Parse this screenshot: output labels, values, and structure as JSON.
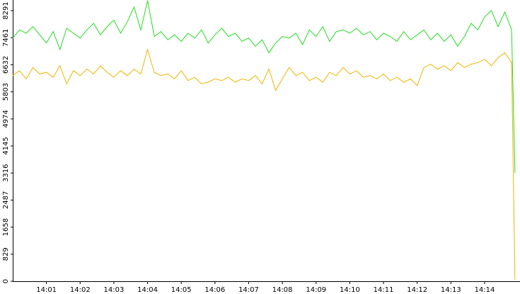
{
  "chart_data": {
    "type": "line",
    "x": [
      0,
      0.2,
      0.4,
      0.6,
      0.8,
      1,
      1.2,
      1.4,
      1.6,
      1.8,
      2,
      2.2,
      2.4,
      2.6,
      2.8,
      3,
      3.2,
      3.4,
      3.6,
      3.8,
      4,
      4.2,
      4.4,
      4.6,
      4.8,
      5,
      5.2,
      5.4,
      5.6,
      5.8,
      6,
      6.2,
      6.4,
      6.6,
      6.8,
      7,
      7.2,
      7.4,
      7.6,
      7.8,
      8,
      8.2,
      8.4,
      8.6,
      8.8,
      9,
      9.2,
      9.4,
      9.6,
      9.8,
      10,
      10.2,
      10.4,
      10.6,
      10.8,
      11,
      11.2,
      11.4,
      11.6,
      11.8,
      12,
      12.2,
      12.4,
      12.6,
      12.8,
      13,
      13.2,
      13.4,
      13.6,
      13.8,
      14,
      14.2,
      14.4,
      14.6,
      14.8,
      14.9
    ],
    "series": [
      {
        "color": "#22dd22",
        "values": [
          7450,
          7700,
          7600,
          7800,
          7550,
          7300,
          7650,
          7100,
          7750,
          7600,
          7450,
          7700,
          7900,
          7550,
          7800,
          8000,
          7600,
          7950,
          8400,
          7700,
          8600,
          7500,
          7650,
          7400,
          7550,
          7350,
          7600,
          7450,
          7700,
          7300,
          7550,
          7750,
          7500,
          7600,
          7350,
          7450,
          7200,
          7400,
          7000,
          7300,
          7500,
          7450,
          7600,
          7250,
          7700,
          7500,
          7800,
          7350,
          7650,
          7700,
          7600,
          7750,
          7550,
          7650,
          7400,
          7600,
          7500,
          7350,
          7650,
          7400,
          7550,
          7700,
          7400,
          7600,
          7350,
          7550,
          7200,
          7500,
          7900,
          7700,
          8100,
          8300,
          7800,
          8250,
          7700,
          3316
        ]
      },
      {
        "color": "#f0b400",
        "values": [
          6300,
          6450,
          6200,
          6550,
          6350,
          6400,
          6250,
          6600,
          6050,
          6450,
          6300,
          6500,
          6350,
          6600,
          6400,
          6250,
          6450,
          6300,
          6500,
          6350,
          7100,
          6400,
          6300,
          6350,
          6200,
          6450,
          6150,
          6250,
          6050,
          6100,
          6200,
          6150,
          6250,
          6100,
          6200,
          6150,
          6300,
          6050,
          6500,
          5850,
          6200,
          6550,
          6300,
          6400,
          6150,
          6250,
          6100,
          6400,
          6300,
          6550,
          6350,
          6450,
          6250,
          6300,
          6200,
          6350,
          6150,
          6250,
          6100,
          6200,
          6000,
          6550,
          6650,
          6500,
          6600,
          6450,
          6700,
          6550,
          6650,
          6700,
          6800,
          6600,
          6850,
          7000,
          6700,
          50
        ]
      }
    ],
    "xlim": [
      0,
      15.05
    ],
    "xticks": [
      {
        "value": 1,
        "label": "14:01"
      },
      {
        "value": 2,
        "label": "14:02"
      },
      {
        "value": 3,
        "label": "14:03"
      },
      {
        "value": 4,
        "label": "14:04"
      },
      {
        "value": 5,
        "label": "14:05"
      },
      {
        "value": 6,
        "label": "14:06"
      },
      {
        "value": 7,
        "label": "14:07"
      },
      {
        "value": 8,
        "label": "14:08"
      },
      {
        "value": 9,
        "label": "14:09"
      },
      {
        "value": 10,
        "label": "14:10"
      },
      {
        "value": 11,
        "label": "14:11"
      },
      {
        "value": 12,
        "label": "14:12"
      },
      {
        "value": 13,
        "label": "14:13"
      },
      {
        "value": 14,
        "label": "14:14"
      }
    ],
    "ylim": [
      0,
      8617
    ],
    "yticks": [
      0,
      829,
      1658,
      2487,
      3316,
      4145,
      4974,
      5803,
      6632,
      7461,
      8291
    ]
  }
}
